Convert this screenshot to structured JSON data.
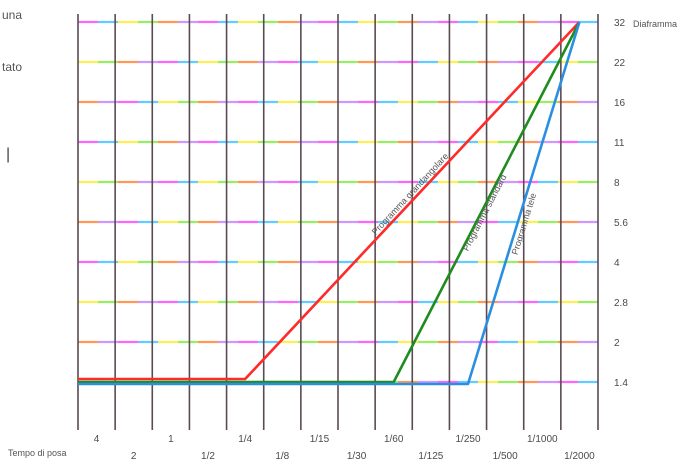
{
  "fragments": {
    "top_left_a": "una",
    "top_left_b": "tato",
    "top_left_c": "|"
  },
  "chart_data": {
    "type": "line",
    "title": "",
    "xlabel": "Tempo di posa",
    "ylabel": "Diaframma",
    "x_ticks_top": [
      "4",
      "1",
      "1/4",
      "1/15",
      "1/60",
      "1/250",
      "1/1000"
    ],
    "x_ticks_bottom": [
      "2",
      "1/2",
      "1/8",
      "1/30",
      "1/125",
      "1/500",
      "1/2000"
    ],
    "x_categories": [
      "4",
      "2",
      "1",
      "1/2",
      "1/4",
      "1/8",
      "1/15",
      "1/30",
      "1/60",
      "1/125",
      "1/250",
      "1/500",
      "1/1000",
      "1/2000"
    ],
    "y_ticks": [
      "1.4",
      "2",
      "2.8",
      "4",
      "5.6",
      "8",
      "11",
      "16",
      "22",
      "32"
    ],
    "y_range": [
      "1.4",
      "32"
    ],
    "series": [
      {
        "name": "Programma grandangolare",
        "color": "#ff2a2a",
        "points": [
          [
            "4",
            "1.4"
          ],
          [
            "1/4",
            "1.4"
          ],
          [
            "1/2000",
            "32"
          ]
        ]
      },
      {
        "name": "Programma standard",
        "color": "#1e8c1e",
        "points": [
          [
            "4",
            "1.4"
          ],
          [
            "1/60",
            "1.4"
          ],
          [
            "1/2000",
            "32"
          ]
        ]
      },
      {
        "name": "Programma tele",
        "color": "#2a8fe0",
        "points": [
          [
            "4",
            "1.4"
          ],
          [
            "1/250",
            "1.4"
          ],
          [
            "1/2000",
            "32"
          ]
        ]
      }
    ],
    "grid": true
  }
}
